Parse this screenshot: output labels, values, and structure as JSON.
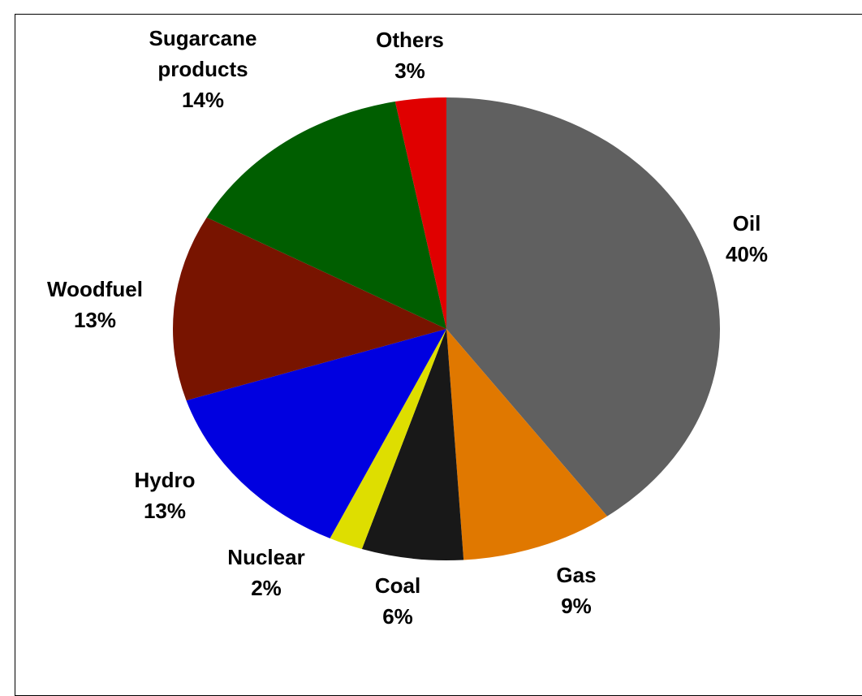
{
  "chart_data": {
    "type": "pie",
    "categories": [
      "Oil",
      "Gas",
      "Coal",
      "Nuclear",
      "Hydro",
      "Woodfuel",
      "Sugarcane products",
      "Others"
    ],
    "values": [
      40,
      9,
      6,
      2,
      13,
      13,
      14,
      3
    ],
    "value_labels": [
      "40%",
      "9%",
      "6%",
      "2%",
      "13%",
      "13%",
      "14%",
      "3%"
    ],
    "colors": [
      "#606060",
      "#e07800",
      "#181818",
      "#dede00",
      "#0000e0",
      "#781400",
      "#005e00",
      "#e00000"
    ]
  }
}
